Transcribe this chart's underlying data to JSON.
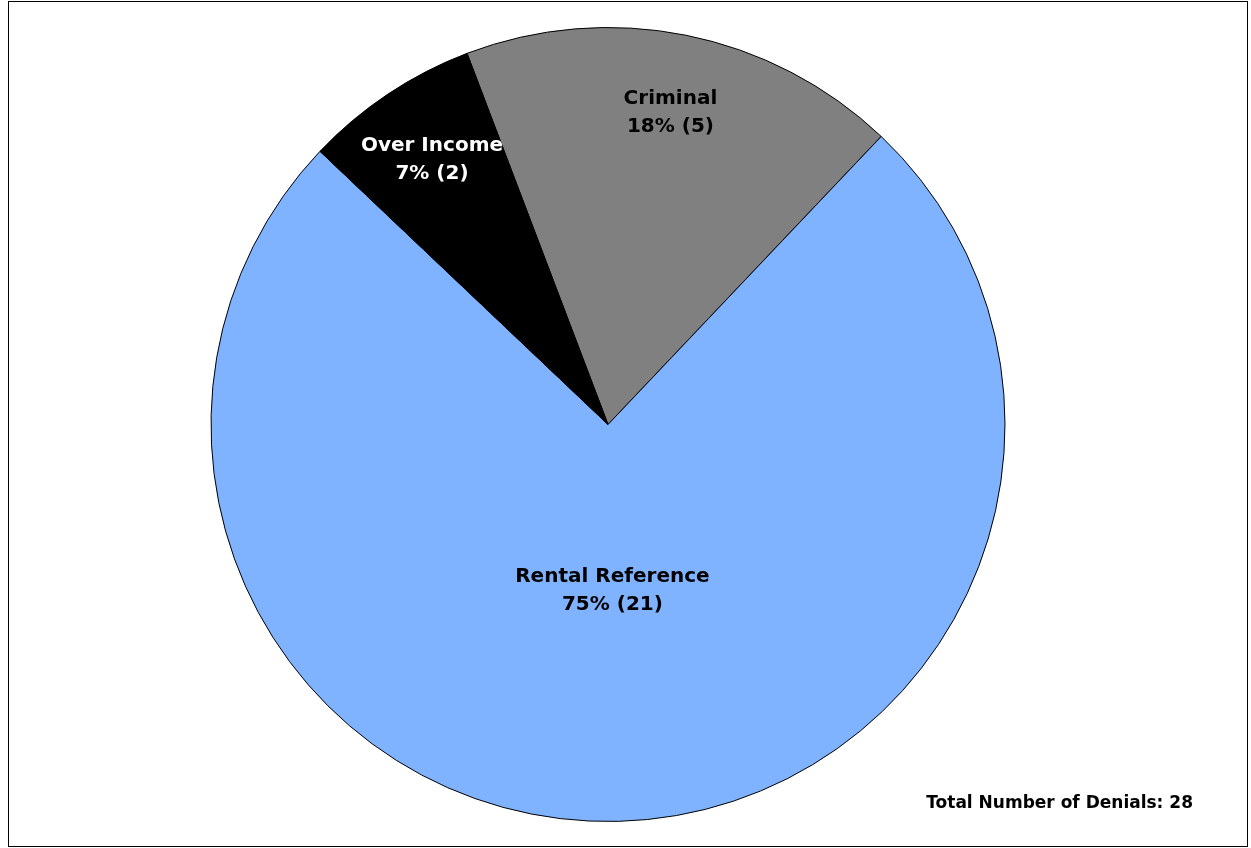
{
  "chart_data": {
    "type": "pie",
    "categories": [
      "Criminal",
      "Rental Reference",
      "Over Income"
    ],
    "values": [
      5,
      21,
      2
    ],
    "colors": [
      "#808080",
      "#80b3ff",
      "#000000"
    ],
    "value_labels": [
      "18% (5)",
      "75% (21)",
      "7% (2)"
    ],
    "annotations": [
      "Total Number of Denials: 28"
    ],
    "legend": false
  }
}
